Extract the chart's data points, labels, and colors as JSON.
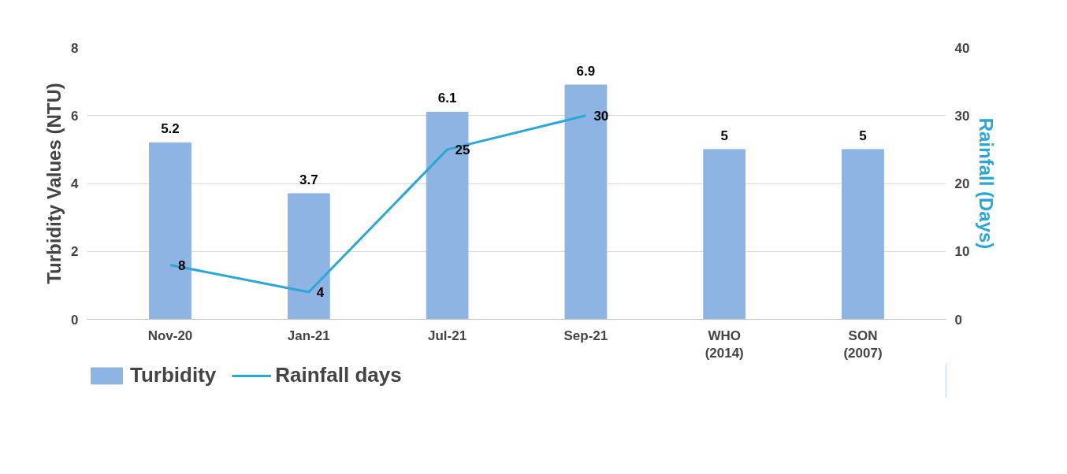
{
  "chart_data": {
    "type": "bar",
    "categories": [
      "Nov-20",
      "Jan-21",
      "Jul-21",
      "Sep-21",
      "WHO\n(2014)",
      "SON\n(2007)"
    ],
    "ylabel": "Turbidity Values (NTU)",
    "y2label": "Rainfall (Days)",
    "series": [
      {
        "name": "Turbidity",
        "color": "#8eb4e3",
        "values": [
          5.2,
          3.7,
          6.1,
          6.9,
          5,
          5
        ]
      },
      {
        "name": "Rainfall days",
        "type": "line",
        "axis": "y2",
        "color": "#2aa7d6",
        "values": [
          8,
          4,
          25,
          30,
          null,
          null
        ]
      }
    ],
    "ylim": [
      0,
      8
    ],
    "yticks": [
      0,
      2,
      4,
      6,
      8
    ],
    "y2lim": [
      0,
      40
    ],
    "y2ticks": [
      0,
      10,
      20,
      30,
      40
    ],
    "data_labels": true,
    "grid": "y",
    "legend": "bottom",
    "marker": "none",
    "line_style": "solid"
  }
}
